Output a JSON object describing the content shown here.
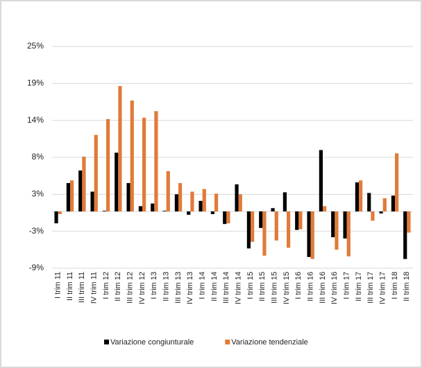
{
  "chart_data": {
    "type": "bar",
    "categories": [
      "I trim 11",
      "II trim 11",
      "III trim 11",
      "IV trim 11",
      "I trim 12",
      "II trim 12",
      "III trim 12",
      "IV trim 12",
      "I trim 13",
      "II trim 13",
      "III trim 13",
      "IV trim 13",
      "I trim 14",
      "II trim 14",
      "III trim 14",
      "IV trim 14",
      "I trim 15",
      "II trim 15",
      "III trim 15",
      "IV trim 15",
      "I trim 16",
      "II trim 16",
      "III trim 16",
      "IV trim 16",
      "I trim 17",
      "II trim 17",
      "III trim 17",
      "IV trim 17",
      "I trim 18",
      "II trim 18"
    ],
    "series": [
      {
        "name": "Variazione congiunturale",
        "color": "#000000",
        "values": [
          -1.8,
          4.3,
          6.2,
          3.0,
          0.1,
          8.9,
          4.3,
          0.8,
          1.2,
          0.1,
          2.6,
          -0.5,
          1.6,
          -0.4,
          -1.9,
          4.1,
          -5.6,
          -2.5,
          0.5,
          2.9,
          -2.8,
          -6.9,
          9.3,
          -3.9,
          -4.1,
          4.4,
          2.8,
          -0.3,
          2.4,
          -7.2
        ]
      },
      {
        "name": "Variazione tendenziale",
        "color": "#e07b39",
        "values": [
          -0.4,
          4.7,
          8.3,
          11.6,
          14.0,
          19.0,
          16.8,
          14.2,
          15.2,
          6.1,
          4.3,
          3.0,
          3.4,
          2.7,
          -1.8,
          2.6,
          -4.6,
          -6.7,
          -4.4,
          -5.5,
          -2.7,
          -7.2,
          0.8,
          -5.8,
          -6.8,
          4.7,
          -1.4,
          2.0,
          8.8,
          -3.2
        ]
      }
    ],
    "ylim": [
      -8.6,
      25
    ],
    "yticks": [
      {
        "value": -8.6,
        "label": "-9%"
      },
      {
        "value": -3,
        "label": "-3%"
      },
      {
        "value": 2.6,
        "label": "3%"
      },
      {
        "value": 8.2,
        "label": "8%"
      },
      {
        "value": 13.8,
        "label": "14%"
      },
      {
        "value": 19.4,
        "label": "19%"
      },
      {
        "value": 25,
        "label": "25%"
      }
    ],
    "grid": true,
    "legend": "bottom"
  }
}
